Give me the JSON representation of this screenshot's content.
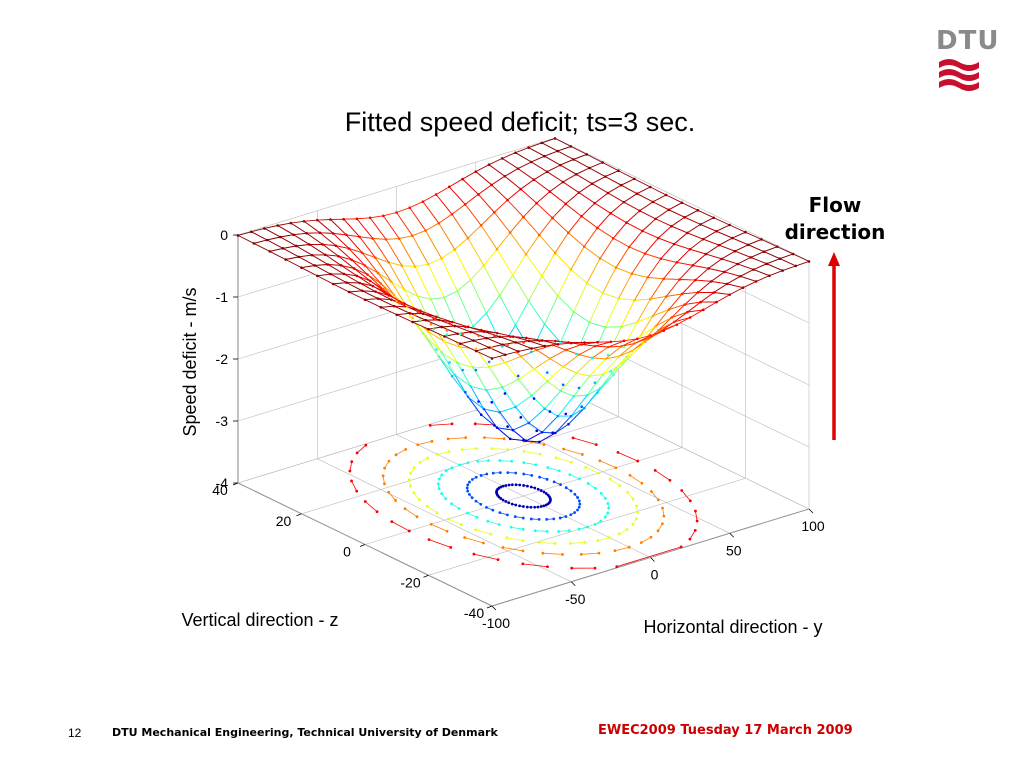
{
  "slide": {
    "page_number": "12",
    "footer_org": "DTU Mechanical Engineering, Technical University of Denmark",
    "footer_event": "EWEC2009 Tuesday 17 March 2009",
    "logo_text": "DTU",
    "flow_label": "Flow\ndirection",
    "accent_color": "#cc0000",
    "logo_color": "#c8102e"
  },
  "chart_data": {
    "type": "surface",
    "title": "Fitted speed deficit; ts=3 sec.",
    "xlabel": "Horizontal direction - y",
    "ylabel": "Vertical direction - z",
    "zlabel": "Speed deficit - m/s",
    "xlim": [
      -100,
      100
    ],
    "ylim": [
      -40,
      40
    ],
    "zlim": [
      -4,
      0
    ],
    "xticks": [
      "-100",
      "-50",
      "0",
      "50",
      "100"
    ],
    "yticks": [
      "-40",
      "-20",
      "0",
      "20",
      "40"
    ],
    "zticks": [
      "0",
      "-1",
      "-2",
      "-3",
      "-4"
    ],
    "grid": true,
    "colormap": "jet",
    "surface_model": {
      "kind": "gaussian-wake",
      "amplitude": 3.1,
      "center_y": 0,
      "center_z": 0,
      "sigma_y": 35,
      "sigma_z": 20
    },
    "contour_projection": true
  }
}
